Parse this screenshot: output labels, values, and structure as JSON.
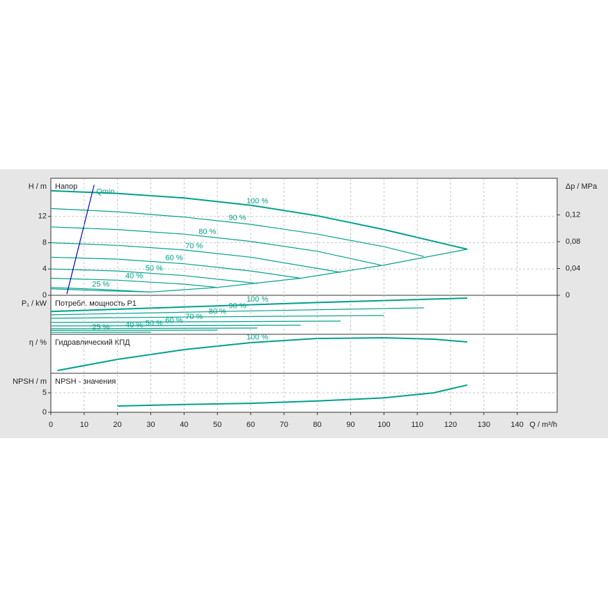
{
  "chart_data": [
    {
      "type": "line",
      "label": "Напор",
      "y_label": "H / m",
      "y2_label": "Δp / MPa",
      "xlim": [
        0,
        152
      ],
      "ylim": [
        0,
        17.8
      ],
      "yticks": [
        0,
        4,
        8,
        12
      ],
      "y2lim": [
        0,
        0.1746
      ],
      "y2ticks": [
        0,
        {
          "value": 0.04,
          "label": "0,04"
        },
        {
          "value": 0.08,
          "label": "0,08"
        },
        {
          "value": 0.12,
          "label": "0,12"
        }
      ],
      "grid": true,
      "series": [
        {
          "name": "100 %",
          "color": "#00a08a",
          "x": [
            0,
            20,
            40,
            60,
            80,
            100,
            125
          ],
          "values": [
            15.9,
            15.5,
            14.8,
            13.7,
            12.1,
            10.0,
            7.0
          ]
        },
        {
          "name": "90 %",
          "color": "#00a08a",
          "x": [
            0,
            20,
            40,
            60,
            80,
            100,
            112
          ],
          "values": [
            13.2,
            12.7,
            11.9,
            10.8,
            9.3,
            7.4,
            5.9
          ]
        },
        {
          "name": "80 %",
          "color": "#00a08a",
          "x": [
            0,
            20,
            40,
            60,
            80,
            99
          ],
          "values": [
            10.4,
            10.0,
            9.3,
            8.2,
            6.7,
            4.6
          ]
        },
        {
          "name": "70 %",
          "color": "#00a08a",
          "x": [
            0,
            20,
            40,
            60,
            87
          ],
          "values": [
            8.0,
            7.6,
            6.9,
            5.8,
            3.5
          ]
        },
        {
          "name": "60 %",
          "color": "#00a08a",
          "x": [
            0,
            20,
            40,
            60,
            75
          ],
          "values": [
            5.8,
            5.5,
            4.8,
            3.7,
            2.6
          ]
        },
        {
          "name": "50 %",
          "color": "#00a08a",
          "x": [
            0,
            20,
            40,
            62
          ],
          "values": [
            4.0,
            3.7,
            3.0,
            1.8
          ]
        },
        {
          "name": "40 %",
          "color": "#00a08a",
          "x": [
            0,
            20,
            40,
            50
          ],
          "values": [
            2.6,
            2.3,
            1.7,
            1.2
          ]
        },
        {
          "name": "25 %",
          "color": "#00a08a",
          "x": [
            0,
            15,
            30
          ],
          "values": [
            1.2,
            0.9,
            0.5
          ]
        },
        {
          "color": "#00a08a",
          "x": [
            0,
            15,
            30,
            50,
            75,
            100,
            125
          ],
          "values": [
            1.0,
            0.7,
            0.5,
            1.2,
            2.6,
            4.6,
            7.0
          ]
        },
        {
          "name": "Qmin",
          "color": "#0000cc",
          "x": [
            4.8,
            13
          ],
          "values": [
            0.2,
            16.8
          ]
        }
      ]
    },
    {
      "type": "line",
      "label": "Потребл. мощность P1",
      "y_label": "P₁ / kW",
      "xlim": [
        0,
        152
      ],
      "ylim": [
        0,
        1.4
      ],
      "grid": true,
      "series": [
        {
          "name": "100 %",
          "color": "#00a08a",
          "x": [
            0,
            40,
            80,
            125
          ],
          "values": [
            0.82,
            0.98,
            1.14,
            1.3
          ]
        },
        {
          "name": "90 %",
          "color": "#00a08a",
          "x": [
            0,
            56,
            112
          ],
          "values": [
            0.7,
            0.83,
            0.95
          ]
        },
        {
          "name": "80 %",
          "color": "#00a08a",
          "x": [
            0,
            50,
            100
          ],
          "values": [
            0.575,
            0.63,
            0.675
          ]
        },
        {
          "name": "70 %",
          "color": "#00a08a",
          "x": [
            0,
            87
          ],
          "values": [
            0.425,
            0.475
          ]
        },
        {
          "name": "60 %",
          "color": "#00a08a",
          "x": [
            0,
            75
          ],
          "values": [
            0.3,
            0.325
          ]
        },
        {
          "name": "50 %",
          "color": "#00a08a",
          "x": [
            0,
            62
          ],
          "values": [
            0.2,
            0.225
          ]
        },
        {
          "name": "40 %",
          "color": "#00a08a",
          "x": [
            0,
            50
          ],
          "values": [
            0.14,
            0.15
          ]
        },
        {
          "name": "25 %",
          "color": "#00a08a",
          "x": [
            0,
            30
          ],
          "values": [
            0.07,
            0.075
          ]
        }
      ]
    },
    {
      "type": "line",
      "label": "Гидравлический КПД",
      "y_label": "η / %",
      "xlim": [
        0,
        152
      ],
      "ylim": [
        0,
        80
      ],
      "grid": true,
      "series": [
        {
          "name": "100 %",
          "color": "#00a08a",
          "x": [
            2,
            20,
            40,
            60,
            80,
            100,
            115,
            125
          ],
          "values": [
            5.7,
            28.6,
            48.6,
            62.9,
            71.4,
            72.9,
            70,
            64.3
          ]
        }
      ]
    },
    {
      "type": "line",
      "label": "NPSH - значения",
      "y_label": "NPSH / m",
      "x_label": "Q / m³/h",
      "xlim": [
        0,
        152
      ],
      "ylim": [
        0,
        10
      ],
      "yticks": [
        0,
        5
      ],
      "xticks": [
        0,
        10,
        20,
        30,
        40,
        50,
        60,
        70,
        80,
        90,
        100,
        110,
        120,
        130,
        140
      ],
      "grid": true,
      "series": [
        {
          "color": "#00a08a",
          "x": [
            20,
            40,
            60,
            80,
            100,
            115,
            125
          ],
          "values": [
            1.6,
            2.0,
            2.3,
            2.9,
            3.7,
            5.0,
            7.0
          ]
        }
      ]
    }
  ]
}
